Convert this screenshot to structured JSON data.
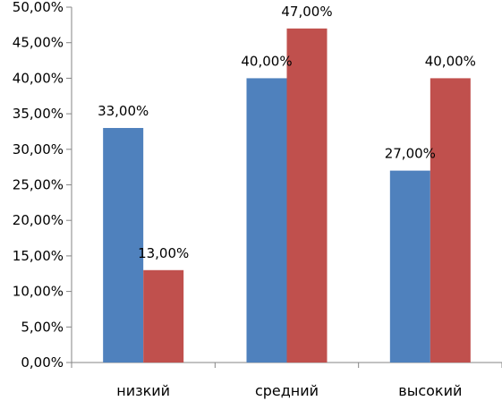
{
  "chart_data": {
    "type": "bar",
    "categories": [
      "низкий",
      "средний",
      "высокий"
    ],
    "series": [
      {
        "color": "#4f81bd",
        "values": [
          33,
          40,
          27
        ],
        "labels": [
          "33,00%",
          "40,00%",
          "27,00%"
        ]
      },
      {
        "color": "#c0504d",
        "values": [
          13,
          47,
          40
        ],
        "labels": [
          "13,00%",
          "47,00%",
          "40,00%"
        ]
      }
    ],
    "ylim": [
      0,
      50
    ],
    "y_ticks": [
      0,
      5,
      10,
      15,
      20,
      25,
      30,
      35,
      40,
      45,
      50
    ],
    "y_tick_labels": [
      "0,00%",
      "5,00%",
      "10,00%",
      "15,00%",
      "20,00%",
      "25,00%",
      "30,00%",
      "35,00%",
      "40,00%",
      "45,00%",
      "50,00%"
    ],
    "title": "",
    "xlabel": "",
    "ylabel": "",
    "grid": false,
    "legend": "none",
    "colors": {
      "axis": "#868686",
      "background": "#ffffff"
    }
  }
}
